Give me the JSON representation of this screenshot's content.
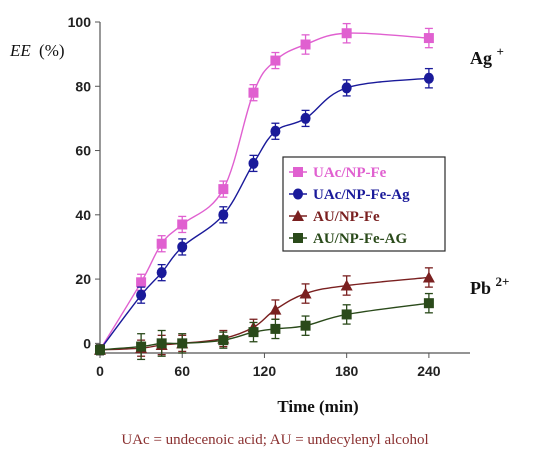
{
  "chart_data": {
    "type": "line",
    "xlabel": "Time (min)",
    "ylabel_italic": "EE",
    "ylabel_unit": "(%)",
    "xlim": [
      0,
      270
    ],
    "ylim": [
      -3,
      100
    ],
    "xticks": [
      0,
      60,
      120,
      180,
      240
    ],
    "yticks": [
      0,
      20,
      40,
      60,
      80,
      100
    ],
    "grid": false,
    "legend_position": "center-right",
    "annotations": [
      "Ag+",
      "Pb2+"
    ],
    "series": [
      {
        "name": "UAc/NP-Fe",
        "color": "#e060d0",
        "marker": "square",
        "x": [
          0,
          30,
          45,
          60,
          90,
          112,
          128,
          150,
          180,
          240
        ],
        "y": [
          -2,
          19,
          31,
          37,
          48,
          78,
          88,
          93,
          96.5,
          95
        ],
        "err": [
          1.5,
          2.5,
          2.5,
          2.5,
          2.5,
          2.5,
          2.5,
          3,
          3,
          3
        ]
      },
      {
        "name": "UAc/NP-Fe-Ag",
        "color": "#1a1a9a",
        "marker": "circle",
        "x": [
          0,
          30,
          45,
          60,
          90,
          112,
          128,
          150,
          180,
          240
        ],
        "y": [
          -2,
          15,
          22,
          30,
          40,
          56,
          66,
          70,
          79.5,
          82.5
        ],
        "err": [
          1.5,
          2.5,
          2.5,
          2.5,
          2.5,
          2.5,
          2.5,
          2.5,
          2.5,
          3
        ]
      },
      {
        "name": "AU/NP-Fe",
        "color": "#7a2020",
        "marker": "triangle",
        "x": [
          0,
          30,
          45,
          60,
          90,
          112,
          128,
          150,
          180,
          240
        ],
        "y": [
          -2,
          -1.5,
          -0.5,
          0,
          1.5,
          5,
          10.5,
          15.5,
          18,
          20.5
        ],
        "err": [
          1.5,
          2.5,
          3,
          2.5,
          2.5,
          2.5,
          3,
          3,
          3,
          3
        ]
      },
      {
        "name": "AU/NP-Fe-AG",
        "color": "#2a4a1a",
        "marker": "square",
        "x": [
          0,
          30,
          45,
          60,
          90,
          112,
          128,
          150,
          180,
          240
        ],
        "y": [
          -2,
          -1,
          0,
          0,
          1,
          3.5,
          4.5,
          5.5,
          9,
          12.5
        ],
        "err": [
          1.5,
          4,
          4,
          3,
          2.5,
          3,
          3,
          3,
          3,
          3
        ]
      }
    ]
  },
  "labels": {
    "ag": "Ag",
    "ag_sup": "+",
    "pb": "Pb",
    "pb_sup": "2+"
  },
  "footnote": "UAc = undecenoic acid;    AU = undecylenyl alcohol"
}
